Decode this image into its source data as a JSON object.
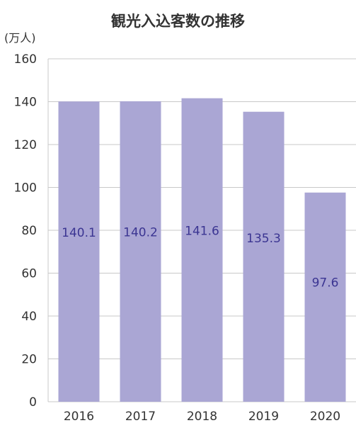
{
  "chart_data": {
    "type": "bar",
    "title": "観光入込客数の推移",
    "unit": "(万人)",
    "categories": [
      "2016",
      "2017",
      "2018",
      "2019",
      "2020"
    ],
    "values": [
      140.1,
      140.2,
      141.6,
      135.3,
      97.6
    ],
    "data_labels": [
      "140.1",
      "140.2",
      "141.6",
      "135.3",
      "97.6"
    ],
    "ylim": [
      0,
      160
    ],
    "yticks": [
      0,
      20,
      40,
      60,
      80,
      100,
      120,
      140,
      160
    ],
    "grid": true,
    "bar_color": "#aaa6d4",
    "label_color": "#3b3592",
    "grid_color": "#c8c8c8"
  }
}
